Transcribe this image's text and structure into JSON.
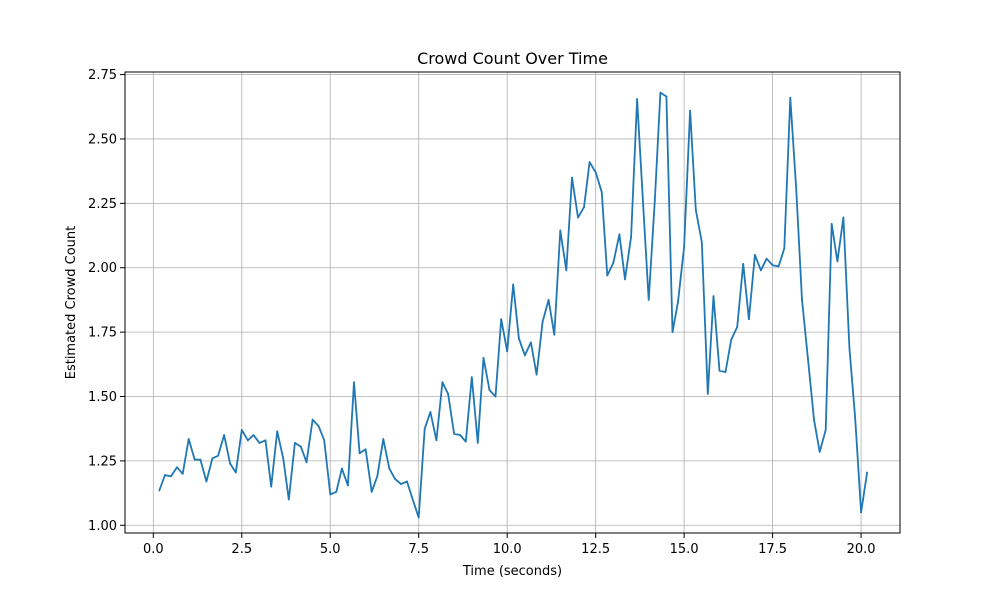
{
  "chart_data": {
    "type": "line",
    "title": "Crowd Count Over Time",
    "xlabel": "Time (seconds)",
    "ylabel": "Estimated Crowd Count",
    "xlim": [
      -0.8,
      21.1
    ],
    "ylim": [
      0.97,
      2.76
    ],
    "grid": true,
    "xticks": [
      0.0,
      2.5,
      5.0,
      7.5,
      10.0,
      12.5,
      15.0,
      17.5,
      20.0
    ],
    "xtick_labels": [
      "0.0",
      "2.5",
      "5.0",
      "7.5",
      "10.0",
      "12.5",
      "15.0",
      "17.5",
      "20.0"
    ],
    "yticks": [
      1.0,
      1.25,
      1.5,
      1.75,
      2.0,
      2.25,
      2.5,
      2.75
    ],
    "ytick_labels": [
      "1.00",
      "1.25",
      "1.50",
      "1.75",
      "2.00",
      "2.25",
      "2.50",
      "2.75"
    ],
    "colors": {
      "line": "#1f77b4",
      "grid": "#b0b0b0",
      "axis": "#000000"
    },
    "series": [
      {
        "x": [
          0.17,
          0.33,
          0.5,
          0.67,
          0.83,
          1.0,
          1.17,
          1.33,
          1.5,
          1.67,
          1.83,
          2.0,
          2.17,
          2.33,
          2.5,
          2.67,
          2.83,
          3.0,
          3.17,
          3.33,
          3.5,
          3.67,
          3.83,
          4.0,
          4.17,
          4.33,
          4.5,
          4.67,
          4.83,
          5.0,
          5.17,
          5.33,
          5.5,
          5.67,
          5.83,
          6.0,
          6.17,
          6.33,
          6.5,
          6.67,
          6.83,
          7.0,
          7.17,
          7.33,
          7.5,
          7.67,
          7.83,
          8.0,
          8.17,
          8.33,
          8.5,
          8.67,
          8.83,
          9.0,
          9.17,
          9.33,
          9.5,
          9.67,
          9.83,
          10.0,
          10.17,
          10.33,
          10.5,
          10.67,
          10.83,
          11.0,
          11.17,
          11.33,
          11.5,
          11.67,
          11.83,
          12.0,
          12.17,
          12.33,
          12.5,
          12.67,
          12.83,
          13.0,
          13.17,
          13.33,
          13.5,
          13.67,
          13.83,
          14.0,
          14.17,
          14.33,
          14.5,
          14.67,
          14.83,
          15.0,
          15.17,
          15.33,
          15.5,
          15.67,
          15.83,
          16.0,
          16.17,
          16.33,
          16.5,
          16.67,
          16.83,
          17.0,
          17.17,
          17.33,
          17.5,
          17.67,
          17.83,
          18.0,
          18.17,
          18.33,
          18.5,
          18.67,
          18.83,
          19.0,
          19.17,
          19.33,
          19.5,
          19.67,
          19.83,
          20.0,
          20.17
        ],
        "y": [
          1.135,
          1.195,
          1.19,
          1.225,
          1.2,
          1.335,
          1.255,
          1.255,
          1.17,
          1.26,
          1.27,
          1.35,
          1.24,
          1.205,
          1.37,
          1.33,
          1.35,
          1.32,
          1.33,
          1.15,
          1.365,
          1.26,
          1.1,
          1.32,
          1.305,
          1.245,
          1.41,
          1.385,
          1.33,
          1.12,
          1.13,
          1.22,
          1.155,
          1.555,
          1.28,
          1.295,
          1.13,
          1.19,
          1.335,
          1.22,
          1.18,
          1.16,
          1.17,
          1.1,
          1.03,
          1.375,
          1.44,
          1.33,
          1.555,
          1.51,
          1.355,
          1.35,
          1.325,
          1.575,
          1.32,
          1.65,
          1.525,
          1.5,
          1.8,
          1.675,
          1.935,
          1.725,
          1.66,
          1.71,
          1.585,
          1.79,
          1.875,
          1.74,
          2.145,
          1.99,
          2.35,
          2.195,
          2.235,
          2.41,
          2.37,
          2.295,
          1.97,
          2.02,
          2.13,
          1.955,
          2.12,
          2.655,
          2.275,
          1.875,
          2.26,
          2.68,
          2.665,
          1.75,
          1.87,
          2.08,
          2.61,
          2.225,
          2.1,
          1.51,
          1.89,
          1.6,
          1.595,
          1.72,
          1.77,
          2.015,
          1.8,
          2.05,
          1.99,
          2.035,
          2.01,
          2.005,
          2.075,
          2.66,
          2.3,
          1.875,
          1.645,
          1.41,
          1.285,
          1.37,
          2.17,
          2.025,
          2.195,
          1.69,
          1.42,
          1.05,
          1.205
        ]
      }
    ]
  }
}
